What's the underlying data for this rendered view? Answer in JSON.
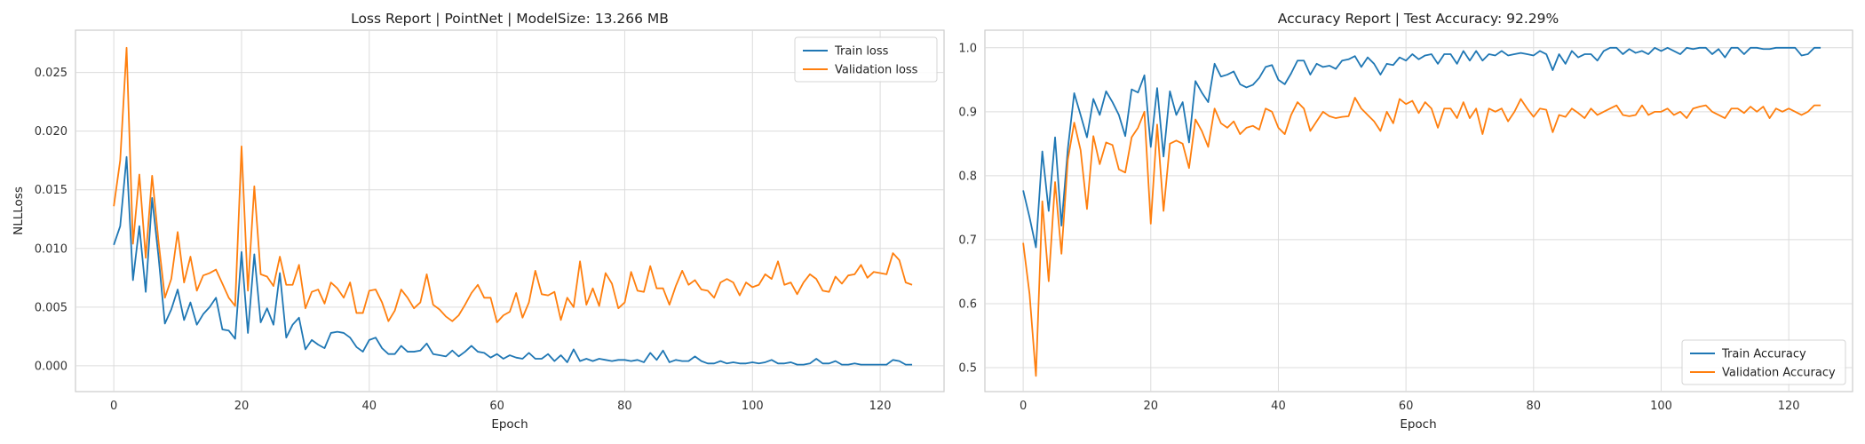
{
  "colors": {
    "train": "#1f77b4",
    "validation": "#ff7f0e",
    "grid": "#dcdcdc",
    "frame": "#cccccc"
  },
  "chart_data": [
    {
      "type": "line",
      "title": "Loss Report | PointNet | ModelSize: 13.266 MB",
      "xlabel": "Epoch",
      "ylabel": "NLLLoss",
      "xlim": [
        -6,
        130
      ],
      "ylim": [
        -0.0022,
        0.0286
      ],
      "xticks": [
        0,
        20,
        40,
        60,
        80,
        100,
        120
      ],
      "xtick_labels": [
        "0",
        "20",
        "40",
        "60",
        "80",
        "100",
        "120"
      ],
      "yticks": [
        0.0,
        0.005,
        0.01,
        0.015,
        0.02,
        0.025
      ],
      "ytick_labels": [
        "0.000",
        "0.005",
        "0.010",
        "0.015",
        "0.020",
        "0.025"
      ],
      "grid": true,
      "legend_position": "top-right",
      "x_start": 0,
      "series": [
        {
          "name": "Train loss",
          "color": "#1f77b4",
          "values": [
            0.0103,
            0.0119,
            0.0178,
            0.0073,
            0.0119,
            0.0063,
            0.0143,
            0.0093,
            0.0036,
            0.0048,
            0.0065,
            0.0039,
            0.0054,
            0.0035,
            0.0044,
            0.005,
            0.0058,
            0.0031,
            0.003,
            0.0023,
            0.0097,
            0.0028,
            0.0095,
            0.0037,
            0.0049,
            0.0035,
            0.0079,
            0.0024,
            0.0035,
            0.0041,
            0.0014,
            0.0022,
            0.0018,
            0.0015,
            0.0028,
            0.0029,
            0.0028,
            0.0024,
            0.0016,
            0.0012,
            0.0022,
            0.0024,
            0.0015,
            0.001,
            0.001,
            0.0017,
            0.0012,
            0.0012,
            0.0013,
            0.0019,
            0.001,
            0.0009,
            0.0008,
            0.0013,
            0.0008,
            0.0012,
            0.0017,
            0.0012,
            0.0011,
            0.0007,
            0.001,
            0.0006,
            0.0009,
            0.0007,
            0.0006,
            0.0011,
            0.0006,
            0.0006,
            0.001,
            0.0004,
            0.0009,
            0.0003,
            0.0014,
            0.0004,
            0.0006,
            0.0004,
            0.0006,
            0.0005,
            0.0004,
            0.0005,
            0.0005,
            0.0004,
            0.0005,
            0.0003,
            0.0011,
            0.0005,
            0.0013,
            0.0003,
            0.0005,
            0.0004,
            0.0004,
            0.0008,
            0.0004,
            0.0002,
            0.0002,
            0.0004,
            0.0002,
            0.0003,
            0.0002,
            0.0002,
            0.0003,
            0.0002,
            0.0003,
            0.0005,
            0.0002,
            0.0002,
            0.0003,
            0.0001,
            0.0001,
            0.0002,
            0.0006,
            0.0002,
            0.0002,
            0.0004,
            0.0001,
            0.0001,
            0.0002,
            0.0001,
            0.0001,
            0.0001,
            0.0001,
            0.0001,
            0.0005,
            0.0004,
            0.0001,
            0.0001
          ]
        },
        {
          "name": "Validation loss",
          "color": "#ff7f0e",
          "values": [
            0.0136,
            0.0175,
            0.0271,
            0.0104,
            0.0163,
            0.0092,
            0.0162,
            0.0106,
            0.0058,
            0.0074,
            0.0114,
            0.0071,
            0.0093,
            0.0064,
            0.0077,
            0.0079,
            0.0082,
            0.007,
            0.0058,
            0.0051,
            0.0187,
            0.0064,
            0.0153,
            0.0078,
            0.0076,
            0.0068,
            0.0093,
            0.0069,
            0.0069,
            0.0086,
            0.0049,
            0.0063,
            0.0065,
            0.0053,
            0.0071,
            0.0066,
            0.0058,
            0.0071,
            0.0045,
            0.0045,
            0.0064,
            0.0065,
            0.0054,
            0.0038,
            0.0047,
            0.0065,
            0.0058,
            0.0049,
            0.0054,
            0.0078,
            0.0052,
            0.0048,
            0.0042,
            0.0038,
            0.0043,
            0.0052,
            0.0062,
            0.0069,
            0.0058,
            0.0058,
            0.0037,
            0.0043,
            0.0046,
            0.0062,
            0.0041,
            0.0054,
            0.0081,
            0.0061,
            0.006,
            0.0063,
            0.0039,
            0.0058,
            0.005,
            0.0089,
            0.0052,
            0.0066,
            0.0051,
            0.0079,
            0.007,
            0.0049,
            0.0054,
            0.008,
            0.0064,
            0.0063,
            0.0085,
            0.0066,
            0.0066,
            0.0052,
            0.0068,
            0.0081,
            0.0069,
            0.0073,
            0.0065,
            0.0064,
            0.0058,
            0.0071,
            0.0074,
            0.0071,
            0.006,
            0.0071,
            0.0067,
            0.0069,
            0.0078,
            0.0074,
            0.0089,
            0.0069,
            0.0071,
            0.0061,
            0.0071,
            0.0078,
            0.0074,
            0.0064,
            0.0063,
            0.0076,
            0.007,
            0.0077,
            0.0078,
            0.0086,
            0.0075,
            0.008,
            0.0079,
            0.0078,
            0.0096,
            0.009,
            0.0071,
            0.0069
          ]
        }
      ]
    },
    {
      "type": "line",
      "title": "Accuracy Report | Test Accuracy: 92.29%",
      "xlabel": "Epoch",
      "ylabel": "",
      "xlim": [
        -6,
        130
      ],
      "ylim": [
        0.4625,
        1.0275
      ],
      "xticks": [
        0,
        20,
        40,
        60,
        80,
        100,
        120
      ],
      "xtick_labels": [
        "0",
        "20",
        "40",
        "60",
        "80",
        "100",
        "120"
      ],
      "yticks": [
        0.5,
        0.6,
        0.7,
        0.8,
        0.9,
        1.0
      ],
      "ytick_labels": [
        "0.5",
        "0.6",
        "0.7",
        "0.8",
        "0.9",
        "1.0"
      ],
      "grid": true,
      "legend_position": "bottom-right",
      "x_start": 0,
      "series": [
        {
          "name": "Train Accuracy",
          "color": "#1f77b4",
          "values": [
            0.777,
            0.735,
            0.688,
            0.838,
            0.745,
            0.86,
            0.722,
            0.842,
            0.929,
            0.895,
            0.86,
            0.92,
            0.895,
            0.932,
            0.915,
            0.895,
            0.862,
            0.935,
            0.93,
            0.957,
            0.845,
            0.937,
            0.83,
            0.932,
            0.895,
            0.915,
            0.852,
            0.948,
            0.93,
            0.915,
            0.975,
            0.955,
            0.958,
            0.963,
            0.943,
            0.938,
            0.942,
            0.953,
            0.97,
            0.973,
            0.95,
            0.943,
            0.96,
            0.98,
            0.98,
            0.958,
            0.975,
            0.97,
            0.972,
            0.967,
            0.98,
            0.982,
            0.987,
            0.97,
            0.985,
            0.975,
            0.958,
            0.975,
            0.973,
            0.985,
            0.98,
            0.99,
            0.982,
            0.988,
            0.99,
            0.975,
            0.99,
            0.99,
            0.975,
            0.995,
            0.98,
            0.995,
            0.98,
            0.99,
            0.988,
            0.995,
            0.988,
            0.99,
            0.992,
            0.99,
            0.988,
            0.995,
            0.99,
            0.965,
            0.99,
            0.975,
            0.995,
            0.985,
            0.99,
            0.99,
            0.98,
            0.995,
            1.0,
            1.0,
            0.99,
            0.998,
            0.992,
            0.995,
            0.99,
            1.0,
            0.995,
            1.0,
            0.995,
            0.99,
            1.0,
            0.998,
            1.0,
            1.0,
            0.99,
            0.998,
            0.985,
            1.0,
            1.0,
            0.99,
            1.0,
            1.0,
            0.998,
            0.998,
            1.0,
            1.0,
            1.0,
            1.0,
            0.988,
            0.99,
            1.0,
            1.0
          ]
        },
        {
          "name": "Validation Accuracy",
          "color": "#ff7f0e",
          "values": [
            0.695,
            0.615,
            0.487,
            0.76,
            0.635,
            0.79,
            0.678,
            0.825,
            0.883,
            0.84,
            0.748,
            0.862,
            0.818,
            0.852,
            0.848,
            0.81,
            0.805,
            0.86,
            0.875,
            0.9,
            0.725,
            0.88,
            0.745,
            0.85,
            0.855,
            0.85,
            0.812,
            0.888,
            0.87,
            0.845,
            0.905,
            0.882,
            0.875,
            0.885,
            0.865,
            0.875,
            0.878,
            0.872,
            0.905,
            0.9,
            0.875,
            0.865,
            0.895,
            0.915,
            0.905,
            0.87,
            0.885,
            0.9,
            0.893,
            0.89,
            0.892,
            0.893,
            0.922,
            0.905,
            0.895,
            0.885,
            0.87,
            0.9,
            0.882,
            0.92,
            0.912,
            0.917,
            0.898,
            0.915,
            0.905,
            0.875,
            0.905,
            0.905,
            0.89,
            0.915,
            0.89,
            0.905,
            0.865,
            0.905,
            0.9,
            0.905,
            0.885,
            0.9,
            0.92,
            0.905,
            0.892,
            0.905,
            0.903,
            0.868,
            0.895,
            0.892,
            0.905,
            0.898,
            0.89,
            0.905,
            0.895,
            0.9,
            0.905,
            0.91,
            0.895,
            0.893,
            0.895,
            0.91,
            0.895,
            0.9,
            0.9,
            0.905,
            0.895,
            0.9,
            0.89,
            0.905,
            0.908,
            0.91,
            0.9,
            0.895,
            0.89,
            0.905,
            0.905,
            0.898,
            0.908,
            0.9,
            0.908,
            0.89,
            0.905,
            0.9,
            0.905,
            0.9,
            0.895,
            0.9,
            0.91,
            0.91
          ]
        }
      ]
    }
  ]
}
